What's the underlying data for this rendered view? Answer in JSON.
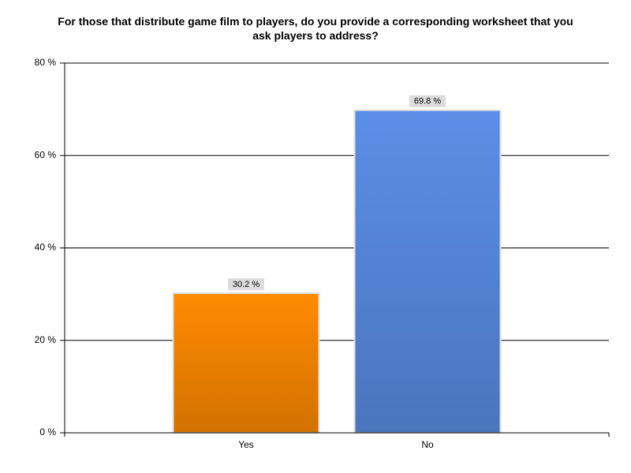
{
  "chart_data": {
    "type": "bar",
    "title": "For those that distribute game film to players, do you provide a corresponding worksheet that you ask players to address?",
    "categories": [
      "Yes",
      "No"
    ],
    "values": [
      30.2,
      69.8
    ],
    "value_labels": [
      "30.2 %",
      "69.8 %"
    ],
    "colors": [
      "#ff8a00",
      "#5b8ee6"
    ],
    "ylim": [
      0,
      80
    ],
    "yticks": [
      {
        "value": 0,
        "label": "0 %"
      },
      {
        "value": 20,
        "label": "20 %"
      },
      {
        "value": 40,
        "label": "40 %"
      },
      {
        "value": 60,
        "label": "60 %"
      },
      {
        "value": 80,
        "label": "80 %"
      }
    ],
    "grid": true
  }
}
